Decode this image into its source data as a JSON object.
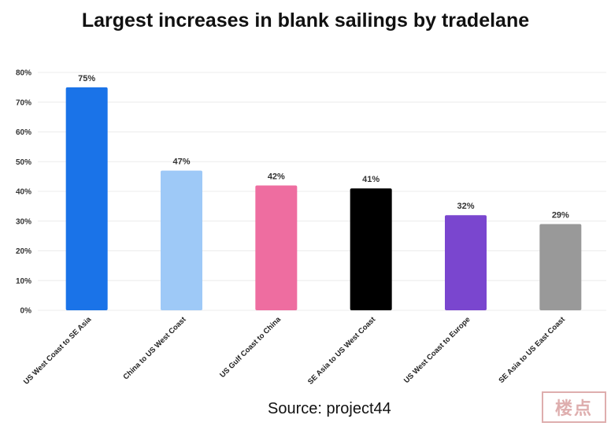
{
  "chart_data": {
    "type": "bar",
    "title": "Largest increases in blank sailings by tradelane",
    "categories": [
      "US West Coast to SE Asia",
      "China to US West Coast",
      "US Gulf Coast to China",
      "SE Asia to US West Coast",
      "US West Coast to Europe",
      "SE Asia to US East Coast"
    ],
    "values": [
      75,
      47,
      42,
      41,
      32,
      29
    ],
    "value_labels": [
      "75%",
      "47%",
      "42%",
      "41%",
      "32%",
      "29%"
    ],
    "colors": [
      "#1a73e8",
      "#9ec9f7",
      "#ee6da0",
      "#000000",
      "#7a46cf",
      "#999999"
    ],
    "yticks": [
      0,
      10,
      20,
      30,
      40,
      50,
      60,
      70,
      80
    ],
    "ytick_labels": [
      "0%",
      "10%",
      "20%",
      "30%",
      "40%",
      "50%",
      "60%",
      "70%",
      "80%"
    ],
    "ylim": [
      0,
      80
    ],
    "xlabel": "",
    "ylabel": "",
    "grid": true,
    "legend": "none"
  },
  "source": "Source: project44",
  "watermark_text": "楼点"
}
